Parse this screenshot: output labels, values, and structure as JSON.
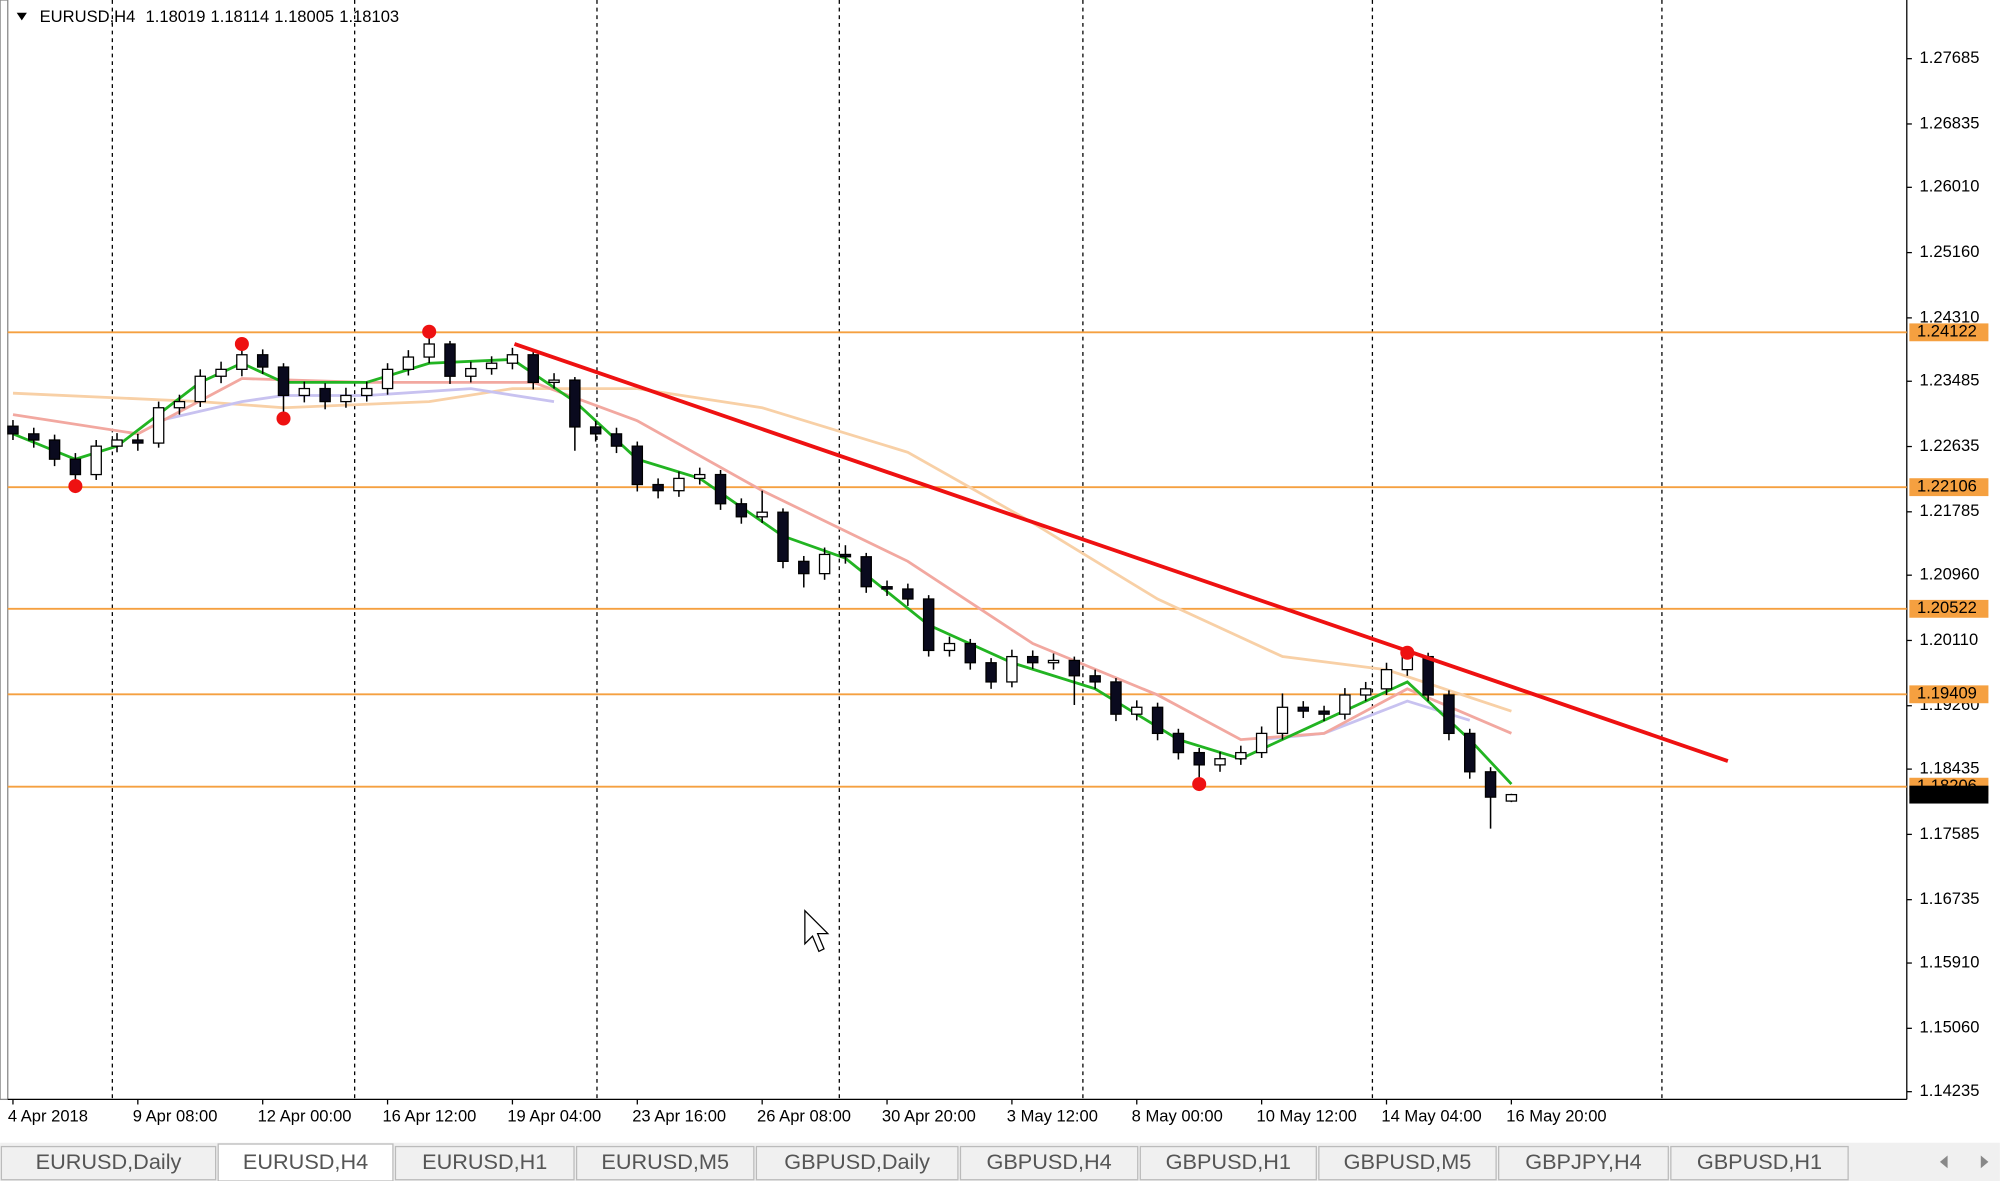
{
  "chart_data": {
    "type": "candlestick",
    "symbol": "EURUSD,H4",
    "categories": [
      "4 Apr 2018",
      null,
      null,
      null,
      null,
      null,
      "9 Apr 08:00",
      null,
      null,
      null,
      null,
      null,
      "12 Apr 00:00",
      null,
      null,
      null,
      null,
      null,
      "16 Apr 12:00",
      null,
      null,
      null,
      null,
      null,
      "19 Apr 04:00",
      null,
      null,
      null,
      null,
      null,
      "23 Apr 16:00",
      null,
      null,
      null,
      null,
      null,
      "26 Apr 08:00",
      null,
      null,
      null,
      null,
      null,
      "30 Apr 20:00",
      null,
      null,
      null,
      null,
      null,
      "3 May 12:00",
      null,
      null,
      null,
      null,
      null,
      "8 May 00:00",
      null,
      null,
      null,
      null,
      null,
      "10 May 12:00",
      null,
      null,
      null,
      null,
      null,
      "14 May 04:00",
      null,
      null,
      null,
      null,
      null,
      "16 May 20:00"
    ],
    "open": [
      1.229,
      1.228,
      1.2272,
      1.2247,
      1.2227,
      1.2264,
      1.2272,
      1.2268,
      1.2314,
      1.2322,
      1.2355,
      1.2364,
      1.2383,
      1.2367,
      1.233,
      1.2339,
      1.2322,
      1.233,
      1.2339,
      1.2364,
      1.238,
      1.2397,
      1.2355,
      1.2365,
      1.2372,
      1.2383,
      1.2347,
      1.235,
      1.2289,
      1.228,
      1.2264,
      1.2214,
      1.2206,
      1.2222,
      1.2227,
      1.2189,
      1.2172,
      1.2178,
      1.2114,
      1.2098,
      1.2123,
      1.212,
      1.2081,
      1.2078,
      1.2065,
      1.1998,
      1.2007,
      1.1982,
      1.1957,
      1.199,
      1.1982,
      1.1985,
      1.1965,
      1.1957,
      1.1915,
      1.1924,
      1.189,
      1.1865,
      1.1849,
      1.1857,
      1.1865,
      1.189,
      1.1924,
      1.1919,
      1.1915,
      1.194,
      1.1948,
      1.1973,
      1.199,
      1.194,
      1.189,
      1.184,
      1.18019
    ],
    "high": [
      1.2298,
      1.2288,
      1.2279,
      1.2255,
      1.2272,
      1.2281,
      1.228,
      1.2322,
      1.2331,
      1.2364,
      1.2374,
      1.2397,
      1.239,
      1.2372,
      1.2348,
      1.2346,
      1.234,
      1.2348,
      1.2372,
      1.2389,
      1.2413,
      1.2401,
      1.2374,
      1.2381,
      1.2392,
      1.2388,
      1.2359,
      1.2354,
      1.2297,
      1.2288,
      1.227,
      1.2222,
      1.2231,
      1.2236,
      1.2233,
      1.2196,
      1.2206,
      1.2183,
      1.2121,
      1.2132,
      1.2135,
      1.2125,
      1.2089,
      1.2085,
      1.207,
      1.2016,
      1.2013,
      1.1988,
      1.1999,
      1.1998,
      1.1994,
      1.199,
      1.1973,
      1.1962,
      1.1933,
      1.193,
      1.1896,
      1.1871,
      1.1866,
      1.1874,
      1.1899,
      1.1942,
      1.1932,
      1.1926,
      1.1949,
      1.1957,
      1.1982,
      1.2,
      1.1995,
      1.1946,
      1.1896,
      1.1846,
      1.18114
    ],
    "low": [
      1.2272,
      1.2262,
      1.2238,
      1.2215,
      1.222,
      1.2256,
      1.2258,
      1.2262,
      1.2305,
      1.2315,
      1.2346,
      1.2355,
      1.2358,
      1.23,
      1.2321,
      1.2312,
      1.2314,
      1.2322,
      1.2331,
      1.2356,
      1.2372,
      1.2345,
      1.2347,
      1.2357,
      1.2364,
      1.2338,
      1.2339,
      1.2258,
      1.227,
      1.2255,
      1.2205,
      1.2196,
      1.2198,
      1.2214,
      1.2181,
      1.2163,
      1.2164,
      1.2105,
      1.208,
      1.209,
      1.2111,
      1.2073,
      1.2069,
      1.2056,
      1.199,
      1.199,
      1.1973,
      1.1948,
      1.195,
      1.1974,
      1.1973,
      1.1927,
      1.1948,
      1.1906,
      1.1907,
      1.1881,
      1.1856,
      1.1824,
      1.184,
      1.1849,
      1.1858,
      1.1882,
      1.191,
      1.1906,
      1.1908,
      1.1932,
      1.194,
      1.1965,
      1.1932,
      1.1881,
      1.1831,
      1.1766,
      1.18005
    ],
    "close": [
      1.228,
      1.2272,
      1.2247,
      1.2227,
      1.2264,
      1.2272,
      1.2268,
      1.2314,
      1.2322,
      1.2355,
      1.2364,
      1.2383,
      1.2367,
      1.233,
      1.2339,
      1.2322,
      1.233,
      1.2339,
      1.2364,
      1.238,
      1.2397,
      1.2355,
      1.2365,
      1.2372,
      1.2383,
      1.2347,
      1.235,
      1.2289,
      1.228,
      1.2264,
      1.2214,
      1.2206,
      1.2222,
      1.2227,
      1.2189,
      1.2172,
      1.2178,
      1.2114,
      1.2098,
      1.2123,
      1.212,
      1.2081,
      1.2078,
      1.2065,
      1.1998,
      1.2007,
      1.1982,
      1.1957,
      1.199,
      1.1982,
      1.1985,
      1.1965,
      1.1957,
      1.1915,
      1.1924,
      1.189,
      1.1865,
      1.1849,
      1.1857,
      1.1865,
      1.189,
      1.1924,
      1.1919,
      1.1915,
      1.194,
      1.1948,
      1.1973,
      1.199,
      1.194,
      1.189,
      1.184,
      1.1807,
      1.18103
    ],
    "overlays": [
      {
        "color": "#f8d0a6",
        "x": [
          0,
          9,
          13,
          20,
          24,
          30,
          36,
          43,
          49,
          55,
          61,
          66,
          72
        ],
        "values": [
          1.2333,
          1.2322,
          1.2314,
          1.2322,
          1.2339,
          1.2339,
          1.2314,
          1.2256,
          1.2164,
          1.2065,
          1.199,
          1.1973,
          1.1919
        ]
      },
      {
        "color": "#c8c2f0",
        "x": [
          7,
          11,
          13,
          17,
          22,
          26,
          27,
          60,
          63,
          67,
          70
        ],
        "values": [
          1.2297,
          1.2322,
          1.233,
          1.233,
          1.2339,
          1.2322,
          null,
          1.1882,
          1.189,
          1.1932,
          1.1907
        ]
      },
      {
        "color": "#f2a8a0",
        "x": [
          0,
          6,
          11,
          17,
          25,
          30,
          36,
          43,
          49,
          55,
          59,
          63,
          67,
          72
        ],
        "values": [
          1.2305,
          1.228,
          1.2352,
          1.2347,
          1.2347,
          1.2297,
          1.2206,
          1.2114,
          1.2007,
          1.194,
          1.1882,
          1.189,
          1.1948,
          1.189
        ]
      },
      {
        "color": "#22b422",
        "x": [
          0,
          3,
          5,
          9,
          11,
          13,
          17,
          20,
          24,
          27,
          30,
          33,
          37,
          40,
          44,
          48,
          52,
          56,
          59,
          63,
          67,
          70,
          72
        ],
        "values": [
          1.228,
          1.2247,
          1.2264,
          1.2347,
          1.2372,
          1.2347,
          1.2347,
          1.2372,
          1.2377,
          1.2322,
          1.2247,
          1.2222,
          1.2147,
          1.2118,
          1.2031,
          1.1982,
          1.1948,
          1.1882,
          1.1857,
          1.1907,
          1.1957,
          1.1882,
          1.1824
        ]
      }
    ],
    "markers": {
      "color": "#ee1111",
      "x": [
        3,
        11,
        13,
        20,
        57,
        67
      ],
      "values": [
        1.2212,
        1.2397,
        1.23,
        1.2413,
        1.1824,
        1.1995
      ]
    },
    "trendline": {
      "color": "#ee1111",
      "x": [
        24.1,
        82.4
      ],
      "values": [
        1.2397,
        1.1854
      ]
    },
    "levels": {
      "color": "#f5a040",
      "values": [
        1.24122,
        1.22106,
        1.20522,
        1.19409,
        1.18206
      ]
    },
    "xlim": [
      -0.25,
      91
    ],
    "ylim": [
      1.14168,
      1.28449
    ],
    "yticks": [
      1.27685,
      1.26835,
      {
        "value": 1.2601,
        "label": "1.26010"
      },
      {
        "value": 1.2516,
        "label": "1.25160"
      },
      {
        "value": 1.2431,
        "label": "1.24310"
      },
      1.23485,
      1.22635,
      1.21785,
      {
        "value": 1.2096,
        "label": "1.20960"
      },
      {
        "value": 1.2011,
        "label": "1.20110"
      },
      {
        "value": 1.1926,
        "label": "1.19260"
      },
      1.18435,
      1.17585,
      1.16735,
      {
        "value": 1.1591,
        "label": "1.15910"
      },
      {
        "value": 1.1506,
        "label": "1.15060"
      },
      1.14235
    ]
  },
  "tabs": [
    "EURUSD,Daily",
    "EURUSD,H4",
    "EURUSD,H1",
    "EURUSD,M5",
    "GBPUSD,Daily",
    "GBPUSD,H4",
    "GBPUSD,H1",
    "GBPUSD,M5",
    "GBPJPY,H4",
    "GBPUSD,H1"
  ],
  "active_tab": 1
}
